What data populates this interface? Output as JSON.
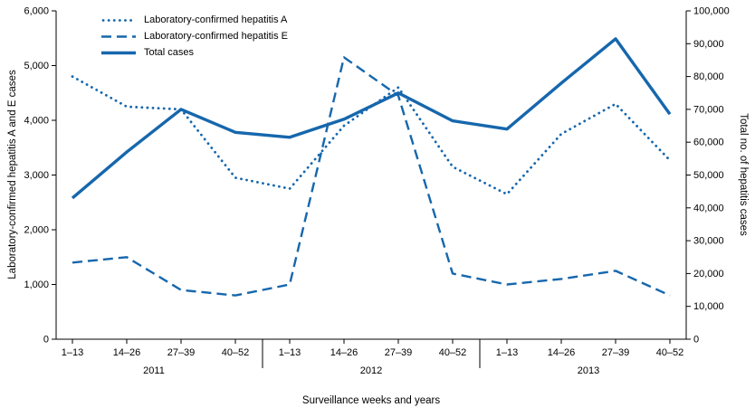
{
  "chart_data": {
    "type": "line",
    "title": "",
    "xlabel": "Surveillance weeks and years",
    "ylabel_left": "Laboratory-confirmed hepatitis A and E cases",
    "ylabel_right": "Total no. of hepatitis cases",
    "color": "#1667ad",
    "x_categories": [
      "1–13",
      "14–26",
      "27–39",
      "40–52",
      "1–13",
      "14–26",
      "27–39",
      "40–52",
      "1–13",
      "14–26",
      "27–39",
      "40–52"
    ],
    "year_groups": [
      {
        "label": "2011",
        "span": [
          0,
          3
        ]
      },
      {
        "label": "2012",
        "span": [
          4,
          7
        ]
      },
      {
        "label": "2013",
        "span": [
          8,
          11
        ]
      }
    ],
    "left_axis": {
      "min": 0,
      "max": 6000,
      "step": 1000,
      "tick_labels": [
        "0",
        "1,000",
        "2,000",
        "3,000",
        "4,000",
        "5,000",
        "6,000"
      ]
    },
    "right_axis": {
      "min": 0,
      "max": 100000,
      "step": 10000,
      "tick_labels": [
        "0",
        "10,000",
        "20,000",
        "30,000",
        "40,000",
        "50,000",
        "60,000",
        "70,000",
        "80,000",
        "90,000",
        "100,000"
      ]
    },
    "series": [
      {
        "name": "Laboratory-confirmed hepatitis A",
        "axis": "left",
        "style": "dotted",
        "values": [
          4800,
          4250,
          4200,
          2950,
          2750,
          3900,
          4600,
          3150,
          2650,
          3750,
          4300,
          3270
        ]
      },
      {
        "name": "Laboratory-confirmed hepatitis E",
        "axis": "left",
        "style": "dashed",
        "values": [
          1400,
          1500,
          900,
          800,
          1000,
          5150,
          4450,
          1200,
          1000,
          1100,
          1250,
          800
        ]
      },
      {
        "name": "Total cases",
        "axis": "right",
        "style": "solid",
        "values": [
          43000,
          57000,
          70000,
          63000,
          61500,
          67000,
          75000,
          66500,
          64000,
          78000,
          91500,
          68500
        ]
      }
    ],
    "legend_position": "top-left-inside",
    "grid": false
  }
}
